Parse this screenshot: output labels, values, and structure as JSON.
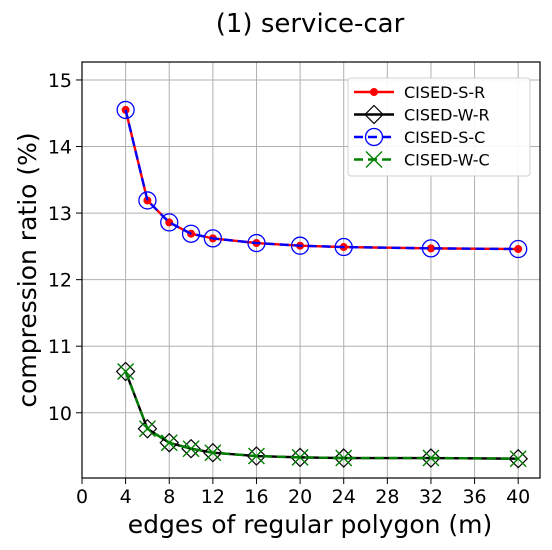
{
  "chart_data": {
    "type": "line",
    "title": "(1) service-car",
    "xlabel": "edges of regular polygon (m)",
    "ylabel": "compression ratio (%)",
    "xlim": [
      0,
      42
    ],
    "ylim": [
      9.02,
      15.27
    ],
    "xticks": [
      0,
      4,
      8,
      12,
      16,
      20,
      24,
      28,
      32,
      36,
      40
    ],
    "yticks": [
      10,
      11,
      12,
      13,
      14,
      15
    ],
    "grid": true,
    "legend_position": "top-right",
    "x": [
      4,
      6,
      8,
      10,
      12,
      16,
      20,
      24,
      32,
      40
    ],
    "series": [
      {
        "name": "CISED-S-R",
        "color": "#ff0000",
        "marker": "dot",
        "line": "solid",
        "values": [
          14.55,
          13.19,
          12.86,
          12.69,
          12.62,
          12.55,
          12.51,
          12.49,
          12.47,
          12.46
        ]
      },
      {
        "name": "CISED-W-R",
        "color": "#000000",
        "marker": "diamond",
        "line": "solid",
        "values": [
          10.62,
          9.76,
          9.55,
          9.46,
          9.4,
          9.35,
          9.33,
          9.32,
          9.32,
          9.31
        ]
      },
      {
        "name": "CISED-S-C",
        "color": "#0000ff",
        "marker": "circle",
        "line": "dashed",
        "values": [
          14.55,
          13.19,
          12.86,
          12.69,
          12.62,
          12.55,
          12.51,
          12.49,
          12.47,
          12.46
        ]
      },
      {
        "name": "CISED-W-C",
        "color": "#008000",
        "marker": "x",
        "line": "dashed",
        "values": [
          10.62,
          9.76,
          9.55,
          9.46,
          9.4,
          9.35,
          9.33,
          9.32,
          9.32,
          9.31
        ]
      }
    ]
  }
}
